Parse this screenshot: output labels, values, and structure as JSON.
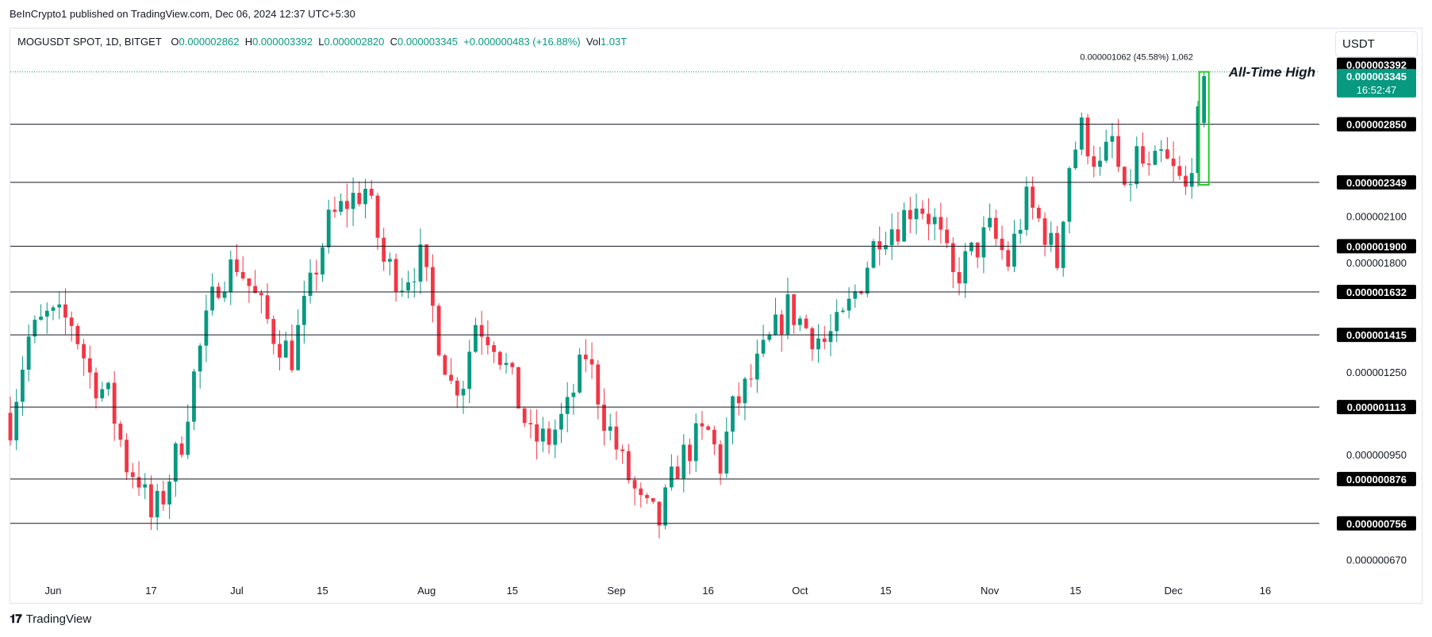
{
  "header": {
    "publisher": "BeInCrypto1 published on TradingView.com, Dec 06, 2024 12:37 UTC+5:30"
  },
  "legend": {
    "symbol": "MOGUSDT SPOT, 1D, BITGET",
    "o_label": "O",
    "o_value": "0.000002862",
    "h_label": "H",
    "h_value": "0.000003392",
    "l_label": "L",
    "l_value": "0.000002820",
    "c_label": "C",
    "c_value": "0.000003345",
    "change": "+0.000000483 (+16.88%)",
    "vol_label": "Vol",
    "vol_value": "1.03T"
  },
  "currency_button": "USDT",
  "footer": {
    "brand": "TradingView"
  },
  "colors": {
    "up": "#089981",
    "down": "#f23645",
    "hline": "#131722",
    "label_bg": "#000000",
    "current_bg": "#089981",
    "highlight": "#22cc22"
  },
  "chart_data": {
    "type": "candlestick",
    "title": "MOGUSDT SPOT, 1D, BITGET",
    "x_range": [
      "2024-05-25",
      "2024-12-26"
    ],
    "y_range": [
      6.2e-07,
      3.6e-06
    ],
    "y_scale": "log",
    "x_ticks": [
      {
        "date": "2024-06-01",
        "label": "Jun"
      },
      {
        "date": "2024-06-17",
        "label": "17"
      },
      {
        "date": "2024-07-01",
        "label": "Jul"
      },
      {
        "date": "2024-07-15",
        "label": "15"
      },
      {
        "date": "2024-08-01",
        "label": "Aug"
      },
      {
        "date": "2024-08-15",
        "label": "15"
      },
      {
        "date": "2024-09-01",
        "label": "Sep"
      },
      {
        "date": "2024-09-16",
        "label": "16"
      },
      {
        "date": "2024-10-01",
        "label": "Oct"
      },
      {
        "date": "2024-10-15",
        "label": "15"
      },
      {
        "date": "2024-11-01",
        "label": "Nov"
      },
      {
        "date": "2024-11-15",
        "label": "15"
      },
      {
        "date": "2024-12-01",
        "label": "Dec"
      },
      {
        "date": "2024-12-16",
        "label": "16"
      }
    ],
    "y_ticks": [
      {
        "value": 6.7e-07,
        "label": "0.000000670"
      },
      {
        "value": 9.5e-07,
        "label": "0.000000950"
      },
      {
        "value": 1.25e-06,
        "label": "0.000001250"
      },
      {
        "value": 1.8e-06,
        "label": "0.000001800"
      },
      {
        "value": 2.1e-06,
        "label": "0.000002100"
      }
    ],
    "horizontal_levels": [
      {
        "value": 2.85e-06,
        "label": "0.000002850"
      },
      {
        "value": 2.349e-06,
        "label": "0.000002349"
      },
      {
        "value": 1.9e-06,
        "label": "0.000001900"
      },
      {
        "value": 1.632e-06,
        "label": "0.000001632"
      },
      {
        "value": 1.415e-06,
        "label": "0.000001415"
      },
      {
        "value": 1.113e-06,
        "label": "0.000001113"
      },
      {
        "value": 8.76e-07,
        "label": "0.000000876"
      },
      {
        "value": 7.56e-07,
        "label": "0.000000756"
      }
    ],
    "ath_line": {
      "value": 3.392e-06,
      "label": "0.000003392",
      "annotation": "All-Time High"
    },
    "current_price": {
      "value": 3.345e-06,
      "label": "0.000003345",
      "countdown": "16:52:47"
    },
    "measure": {
      "label": "0.000001062 (45.58%) 1,062",
      "from": 2.33e-06,
      "to": 3.392e-06,
      "date": "2024-12-06"
    },
    "anchors": [
      [
        "2024-05-25",
        1.06
      ],
      [
        "2024-05-28",
        1.4
      ],
      [
        "2024-05-31",
        1.5
      ],
      [
        "2024-06-04",
        1.48
      ],
      [
        "2024-06-07",
        1.24
      ],
      [
        "2024-06-10",
        1.15
      ],
      [
        "2024-06-13",
        0.92
      ],
      [
        "2024-06-15",
        0.88
      ],
      [
        "2024-06-17",
        0.77
      ],
      [
        "2024-06-19",
        0.83
      ],
      [
        "2024-06-22",
        1.0
      ],
      [
        "2024-06-25",
        1.35
      ],
      [
        "2024-06-28",
        1.7
      ],
      [
        "2024-07-01",
        1.8
      ],
      [
        "2024-07-04",
        1.6
      ],
      [
        "2024-07-07",
        1.42
      ],
      [
        "2024-07-10",
        1.32
      ],
      [
        "2024-07-13",
        1.65
      ],
      [
        "2024-07-16",
        2.05
      ],
      [
        "2024-07-19",
        2.2
      ],
      [
        "2024-07-22",
        2.3
      ],
      [
        "2024-07-25",
        1.8
      ],
      [
        "2024-07-28",
        1.7
      ],
      [
        "2024-07-31",
        1.82
      ],
      [
        "2024-08-03",
        1.4
      ],
      [
        "2024-08-05",
        1.2
      ],
      [
        "2024-08-07",
        1.22
      ],
      [
        "2024-08-09",
        1.48
      ],
      [
        "2024-08-12",
        1.4
      ],
      [
        "2024-08-15",
        1.2
      ],
      [
        "2024-08-18",
        1.0
      ],
      [
        "2024-08-21",
        1.0
      ],
      [
        "2024-08-24",
        1.1
      ],
      [
        "2024-08-27",
        1.33
      ],
      [
        "2024-08-30",
        1.08
      ],
      [
        "2024-09-02",
        0.92
      ],
      [
        "2024-09-05",
        0.8
      ],
      [
        "2024-09-08",
        0.76
      ],
      [
        "2024-09-11",
        0.92
      ],
      [
        "2024-09-14",
        1.0
      ],
      [
        "2024-09-16",
        1.02
      ],
      [
        "2024-09-18",
        0.92
      ],
      [
        "2024-09-20",
        1.1
      ],
      [
        "2024-09-23",
        1.22
      ],
      [
        "2024-09-26",
        1.38
      ],
      [
        "2024-09-29",
        1.55
      ],
      [
        "2024-10-02",
        1.45
      ],
      [
        "2024-10-05",
        1.38
      ],
      [
        "2024-10-08",
        1.48
      ],
      [
        "2024-10-11",
        1.7
      ],
      [
        "2024-10-14",
        2.0
      ],
      [
        "2024-10-17",
        2.05
      ],
      [
        "2024-10-20",
        2.22
      ],
      [
        "2024-10-23",
        2.05
      ],
      [
        "2024-10-26",
        1.7
      ],
      [
        "2024-10-29",
        1.85
      ],
      [
        "2024-11-01",
        2.0
      ],
      [
        "2024-11-04",
        1.8
      ],
      [
        "2024-11-07",
        2.2
      ],
      [
        "2024-11-10",
        2.0
      ],
      [
        "2024-11-12",
        1.8
      ],
      [
        "2024-11-14",
        2.5
      ],
      [
        "2024-11-16",
        2.8
      ],
      [
        "2024-11-19",
        2.45
      ],
      [
        "2024-11-21",
        2.7
      ],
      [
        "2024-11-23",
        2.2
      ],
      [
        "2024-11-25",
        2.58
      ],
      [
        "2024-11-27",
        2.4
      ],
      [
        "2024-11-29",
        2.55
      ],
      [
        "2024-12-01",
        2.42
      ],
      [
        "2024-12-03",
        2.28
      ],
      [
        "2024-12-05",
        2.86
      ],
      [
        "2024-12-06",
        3.345
      ]
    ]
  }
}
